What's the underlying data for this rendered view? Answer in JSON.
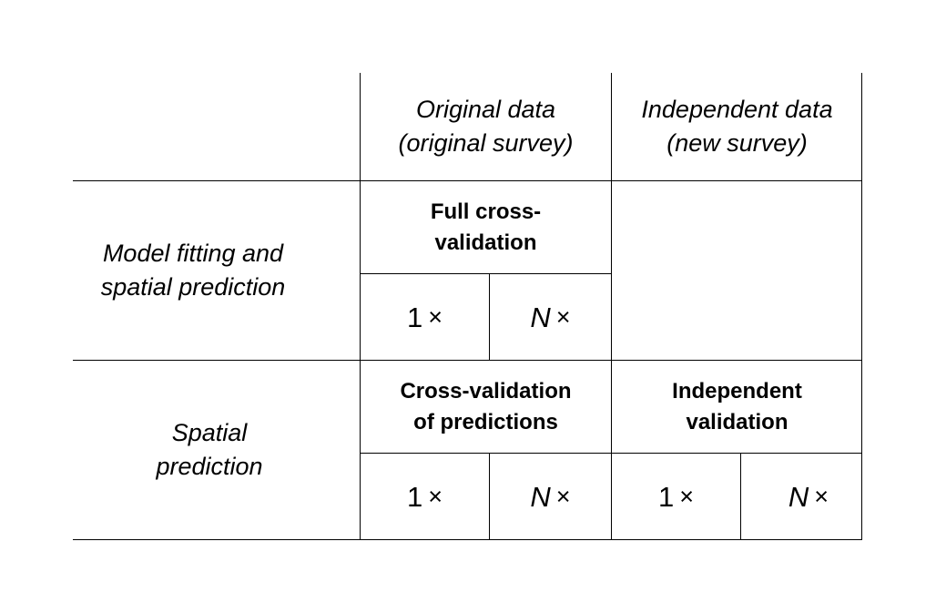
{
  "columns": {
    "original": {
      "line1": "Original data",
      "line2": "(original survey)"
    },
    "independent": {
      "line1": "Independent data",
      "line2": "(new survey)"
    }
  },
  "rows": {
    "model_fitting": {
      "label_line1": "Model fitting and",
      "label_line2": "spatial prediction",
      "method_line1": "Full cross-",
      "method_line2": "validation",
      "once": "1",
      "n_times": "N",
      "times_symbol": "×"
    },
    "spatial_prediction": {
      "label_line1": "Spatial",
      "label_line2": "prediction",
      "cv_line1": "Cross-validation",
      "cv_line2": "of predictions",
      "iv_line1": "Independent",
      "iv_line2": "validation",
      "once": "1",
      "n_times": "N",
      "times_symbol": "×"
    }
  }
}
